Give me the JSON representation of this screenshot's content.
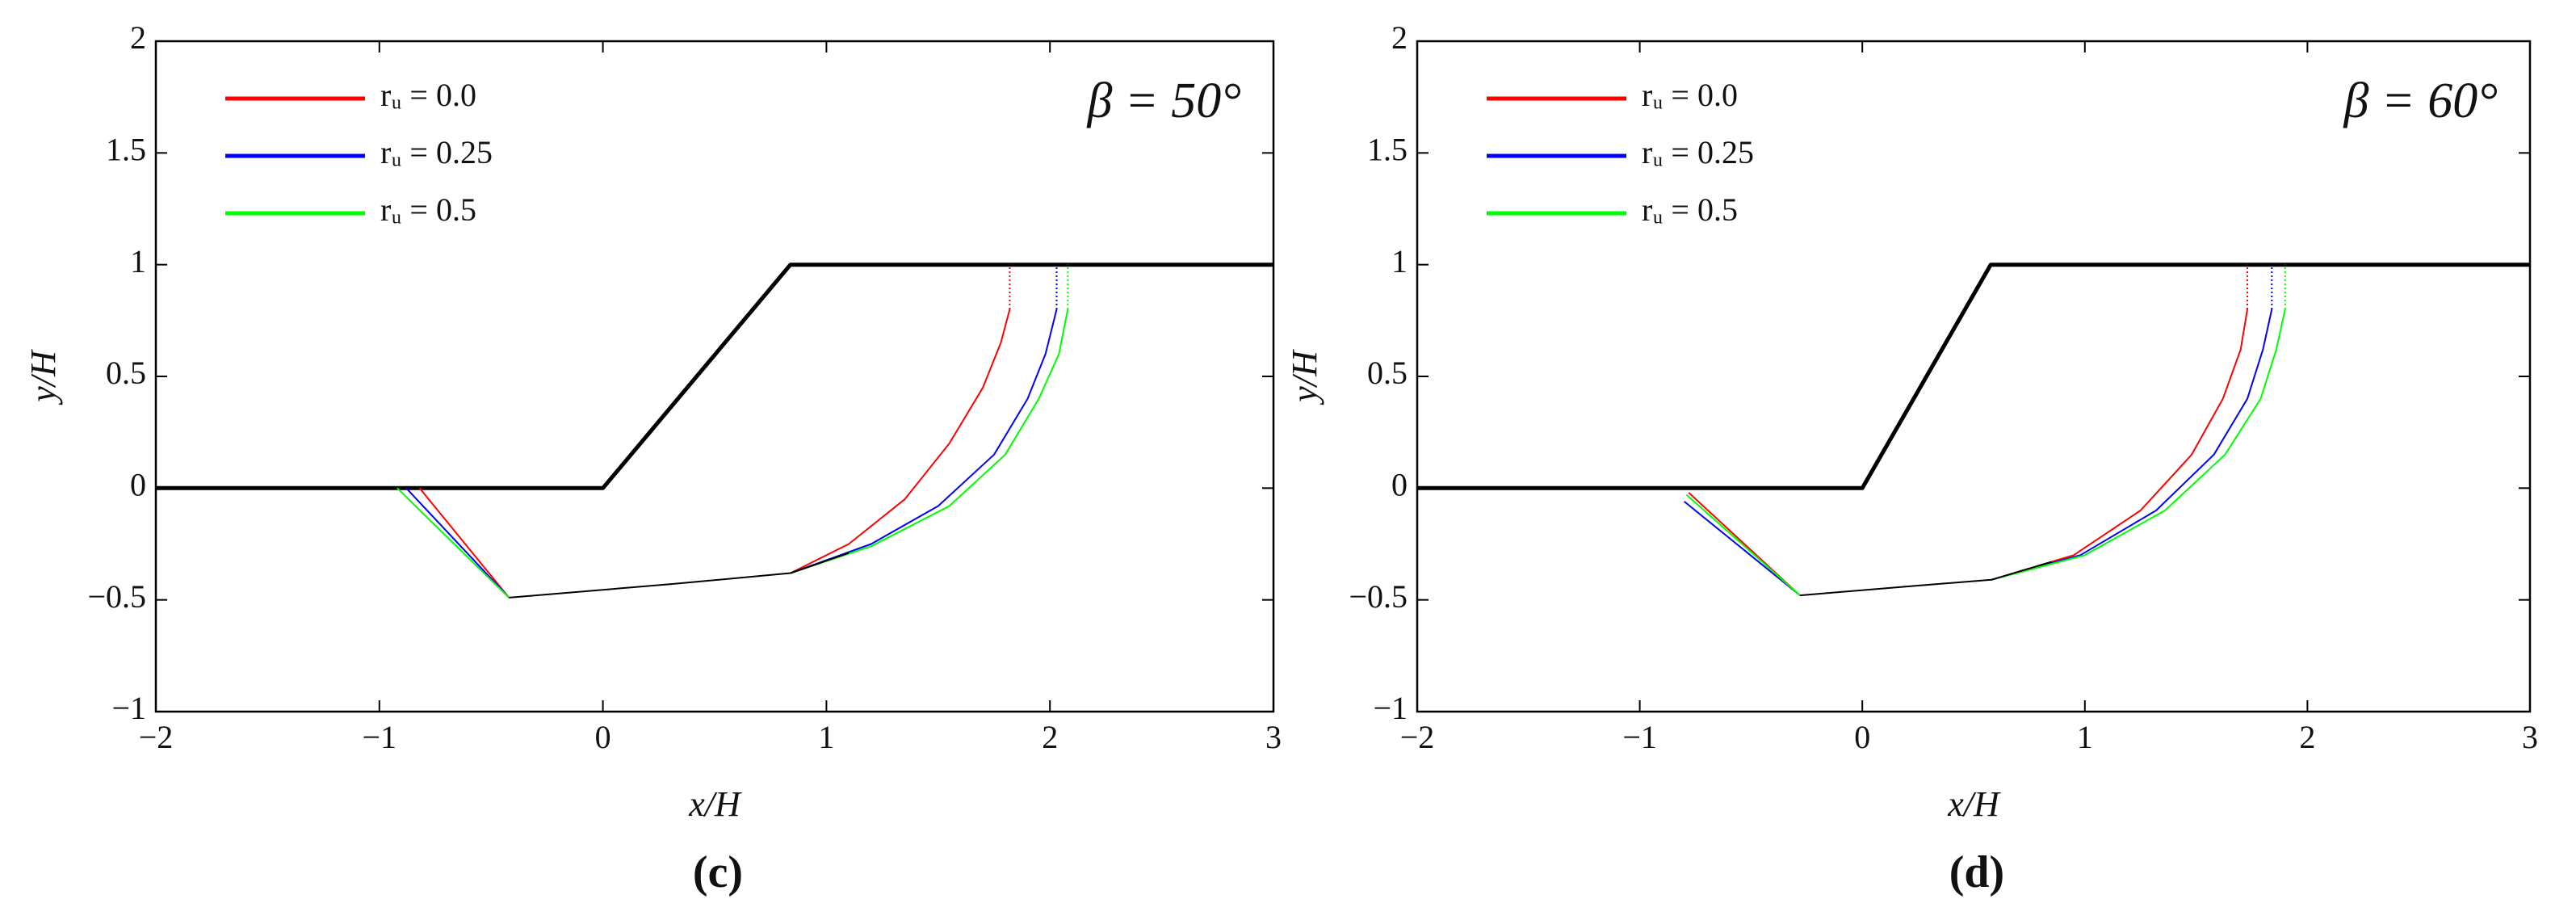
{
  "chart_data": [
    {
      "type": "line",
      "caption": "(c)",
      "annotation": "β = 50°",
      "xlabel": "x/H",
      "ylabel": "y/H",
      "xlim": [
        -2,
        3
      ],
      "ylim": [
        -1,
        2
      ],
      "xticks": [
        {
          "value": -2,
          "label": "−2"
        },
        {
          "value": -1,
          "label": "−1"
        },
        0,
        1,
        2,
        3
      ],
      "yticks": [
        {
          "value": -1,
          "label": "−1"
        },
        {
          "value": -0.5,
          "label": "−0.5"
        },
        0,
        0.5,
        1,
        1.5,
        2
      ],
      "series": [
        {
          "color": "#000000",
          "width": 5,
          "x": [
            -2,
            0,
            0.839,
            3
          ],
          "y": [
            0,
            0,
            1,
            1
          ]
        },
        {
          "name": "rᵤ = 0.0",
          "color": "#ff0000",
          "width": 2,
          "x": [
            -0.82,
            -0.42,
            null,
            0.84,
            1.1,
            1.35,
            1.55,
            1.7,
            1.78,
            1.82
          ],
          "y": [
            0,
            -0.49,
            null,
            -0.38,
            -0.25,
            -0.05,
            0.2,
            0.45,
            0.65,
            0.8
          ]
        },
        {
          "name": "rᵤ = 0.25",
          "color": "#0000ff",
          "width": 2,
          "x": [
            -0.88,
            -0.42,
            null,
            0.84,
            1.2,
            1.5,
            1.75,
            1.9,
            1.98,
            2.03
          ],
          "y": [
            0,
            -0.49,
            null,
            -0.38,
            -0.25,
            -0.08,
            0.15,
            0.4,
            0.6,
            0.8
          ]
        },
        {
          "name": "rᵤ = 0.5",
          "color": "#00ff00",
          "width": 2,
          "x": [
            -0.92,
            -0.42,
            null,
            0.84,
            1.2,
            1.55,
            1.8,
            1.95,
            2.04,
            2.08
          ],
          "y": [
            0,
            -0.49,
            null,
            -0.38,
            -0.26,
            -0.08,
            0.15,
            0.4,
            0.6,
            0.8
          ]
        },
        {
          "color": "#000000",
          "width": 2,
          "x": [
            -0.42,
            0.3,
            0.84,
            1.1
          ],
          "y": [
            -0.49,
            -0.43,
            -0.38,
            -0.29
          ]
        },
        {
          "color": "#ff0000",
          "width": 2,
          "dash": "dotted",
          "x": [
            1.82,
            1.82
          ],
          "y": [
            0.8,
            1
          ]
        },
        {
          "color": "#0000ff",
          "width": 2,
          "dash": "dotted",
          "x": [
            2.03,
            2.03
          ],
          "y": [
            0.8,
            1
          ]
        },
        {
          "color": "#00ff00",
          "width": 2,
          "dash": "dotted",
          "x": [
            2.08,
            2.08
          ],
          "y": [
            0.8,
            1
          ]
        }
      ]
    },
    {
      "type": "line",
      "caption": "(d)",
      "annotation": "β = 60°",
      "xlabel": "x/H",
      "ylabel": "y/H",
      "xlim": [
        -2,
        3
      ],
      "ylim": [
        -1,
        2
      ],
      "xticks": [
        {
          "value": -2,
          "label": "−2"
        },
        {
          "value": -1,
          "label": "−1"
        },
        0,
        1,
        2,
        3
      ],
      "yticks": [
        {
          "value": -1,
          "label": "−1"
        },
        {
          "value": -0.5,
          "label": "−0.5"
        },
        0,
        0.5,
        1,
        1.5,
        2
      ],
      "series": [
        {
          "color": "#000000",
          "width": 5,
          "x": [
            -2,
            0,
            0.577,
            3
          ],
          "y": [
            0,
            0,
            1,
            1
          ]
        },
        {
          "name": "rᵤ = 0.0",
          "color": "#ff0000",
          "width": 2,
          "x": [
            -0.78,
            -0.28,
            null,
            0.58,
            0.95,
            1.25,
            1.48,
            1.62,
            1.7,
            1.73
          ],
          "y": [
            -0.02,
            -0.48,
            null,
            -0.41,
            -0.3,
            -0.1,
            0.15,
            0.4,
            0.62,
            0.8
          ]
        },
        {
          "name": "rᵤ = 0.25",
          "color": "#0000ff",
          "width": 2,
          "x": [
            -0.8,
            -0.28,
            null,
            0.58,
            0.98,
            1.32,
            1.58,
            1.73,
            1.8,
            1.84
          ],
          "y": [
            -0.06,
            -0.48,
            null,
            -0.41,
            -0.3,
            -0.1,
            0.15,
            0.4,
            0.62,
            0.8
          ]
        },
        {
          "name": "rᵤ = 0.5",
          "color": "#00ff00",
          "width": 2,
          "x": [
            -0.79,
            -0.28,
            null,
            0.58,
            1.0,
            1.36,
            1.63,
            1.79,
            1.86,
            1.9
          ],
          "y": [
            -0.03,
            -0.48,
            null,
            -0.41,
            -0.3,
            -0.1,
            0.15,
            0.4,
            0.62,
            0.8
          ]
        },
        {
          "color": "#000000",
          "width": 2,
          "x": [
            -0.28,
            0.2,
            0.58,
            0.85
          ],
          "y": [
            -0.48,
            -0.44,
            -0.41,
            -0.33
          ]
        },
        {
          "color": "#ff0000",
          "width": 2,
          "dash": "dotted",
          "x": [
            1.73,
            1.73
          ],
          "y": [
            0.8,
            1
          ]
        },
        {
          "color": "#0000ff",
          "width": 2,
          "dash": "dotted",
          "x": [
            1.84,
            1.84
          ],
          "y": [
            0.8,
            1
          ]
        },
        {
          "color": "#00ff00",
          "width": 2,
          "dash": "dotted",
          "x": [
            1.9,
            1.9
          ],
          "y": [
            0.8,
            1
          ]
        }
      ]
    }
  ]
}
